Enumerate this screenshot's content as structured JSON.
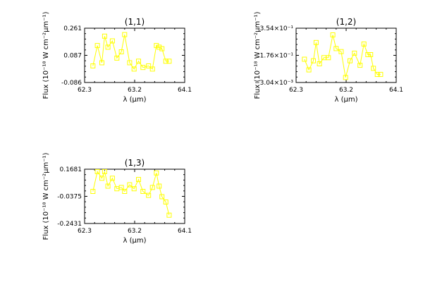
{
  "chart_data": [
    {
      "type": "line",
      "title": "(1,1)",
      "xlabel": "λ (μm)",
      "ylabel": "Flux (10⁻¹⁸ W cm⁻²μm⁻¹)",
      "xlim": [
        62.3,
        64.1
      ],
      "ylim": [
        -0.086,
        0.261
      ],
      "xticks": [
        "62.3",
        "63.2",
        "64.1"
      ],
      "yticks": [
        "0.261",
        "0.087",
        "-0.086"
      ],
      "marker": "square",
      "color": "#ffff00",
      "series": [
        {
          "x": [
            62.45,
            62.53,
            62.61,
            62.66,
            62.72,
            62.8,
            62.88,
            62.96,
            63.02,
            63.11,
            63.19,
            63.27,
            63.35,
            63.45,
            63.52,
            63.59,
            63.64,
            63.69,
            63.76,
            63.82
          ],
          "y": [
            0.02,
            0.15,
            0.04,
            0.21,
            0.14,
            0.18,
            0.07,
            0.11,
            0.22,
            0.04,
            0.0,
            0.05,
            0.01,
            0.02,
            0.0,
            0.15,
            0.14,
            0.13,
            0.05,
            0.05
          ]
        }
      ]
    },
    {
      "type": "line",
      "title": "(1,2)",
      "xlabel": "λ (μm)",
      "ylabel": "Flux (10⁻¹⁸ W cm⁻²μm⁻¹)",
      "xlim": [
        62.3,
        64.1
      ],
      "ylim": [
        -0.00304,
        0.354
      ],
      "xticks": [
        "62.3",
        "63.2",
        "64.1"
      ],
      "yticks": [
        "3.54×10⁻¹",
        "1.76×10⁻¹",
        "−3.04×10⁻³"
      ],
      "marker": "square",
      "color": "#ffff00",
      "series": [
        {
          "x": [
            62.45,
            62.53,
            62.61,
            62.66,
            62.72,
            62.8,
            62.88,
            62.96,
            63.02,
            63.11,
            63.19,
            63.27,
            63.35,
            63.45,
            63.52,
            63.59,
            63.64,
            63.69,
            63.76,
            63.82
          ],
          "y": [
            0.15,
            0.08,
            0.14,
            0.26,
            0.12,
            0.16,
            0.16,
            0.31,
            0.22,
            0.2,
            0.03,
            0.14,
            0.19,
            0.11,
            0.25,
            0.18,
            0.18,
            0.09,
            0.05,
            0.05
          ]
        }
      ]
    },
    {
      "type": "line",
      "title": "(1,3)",
      "xlabel": "λ (μm)",
      "ylabel": "Flux (10⁻¹⁸ W cm⁻²μm⁻¹)",
      "xlim": [
        62.3,
        64.1
      ],
      "ylim": [
        -0.2431,
        0.1681
      ],
      "xticks": [
        "62.3",
        "63.2",
        "64.1"
      ],
      "yticks": [
        "0.1681",
        "-0.0375",
        "-0.2431"
      ],
      "marker": "square",
      "color": "#ffff00",
      "series": [
        {
          "x": [
            62.45,
            62.53,
            62.61,
            62.66,
            62.72,
            62.8,
            62.88,
            62.96,
            63.02,
            63.11,
            63.19,
            63.27,
            63.35,
            63.45,
            63.52,
            63.59,
            63.64,
            63.69,
            63.76,
            63.82
          ],
          "y": [
            0.0,
            0.15,
            0.1,
            0.15,
            0.04,
            0.1,
            0.02,
            0.03,
            0.0,
            0.05,
            0.02,
            0.09,
            0.0,
            -0.03,
            0.03,
            0.14,
            0.04,
            -0.04,
            -0.08,
            -0.18
          ]
        }
      ]
    }
  ]
}
